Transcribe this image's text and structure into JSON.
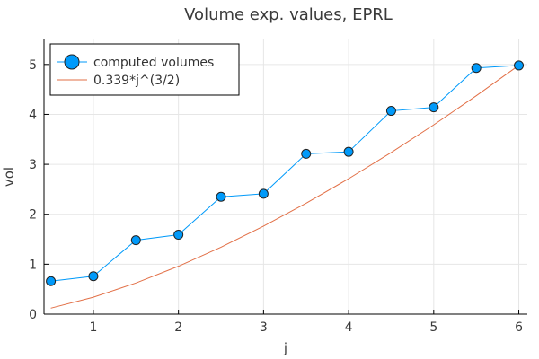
{
  "chart_data": {
    "type": "line",
    "title": "Volume exp. values, EPRL",
    "xlabel": "j",
    "ylabel": "vol",
    "xlim": [
      0.42,
      6.1
    ],
    "ylim": [
      0,
      5.5
    ],
    "x_ticks": [
      1,
      2,
      3,
      4,
      5,
      6
    ],
    "y_ticks": [
      0,
      1,
      2,
      3,
      4,
      5
    ],
    "x_tick_labels": [
      "1",
      "2",
      "3",
      "4",
      "5",
      "6"
    ],
    "y_tick_labels": [
      "0",
      "1",
      "2",
      "3",
      "4",
      "5"
    ],
    "grid": true,
    "legend_position": "top-left",
    "series": [
      {
        "name": "computed volumes",
        "color": "#009AFA",
        "marker": "circle",
        "x": [
          0.5,
          1.0,
          1.5,
          2.0,
          2.5,
          3.0,
          3.5,
          4.0,
          4.5,
          5.0,
          5.5,
          6.0
        ],
        "values": [
          0.66,
          0.76,
          1.48,
          1.59,
          2.35,
          2.41,
          3.21,
          3.25,
          4.07,
          4.14,
          4.93,
          4.98
        ]
      },
      {
        "name": "0.339*j^(3/2)",
        "color": "#E26F46",
        "marker": "none",
        "x": [
          0.5,
          1.0,
          1.5,
          2.0,
          2.5,
          3.0,
          3.5,
          4.0,
          4.5,
          5.0,
          5.5,
          6.0
        ],
        "values": [
          0.12,
          0.339,
          0.623,
          0.959,
          1.34,
          1.762,
          2.22,
          2.712,
          3.236,
          3.79,
          4.373,
          4.982
        ]
      }
    ]
  }
}
